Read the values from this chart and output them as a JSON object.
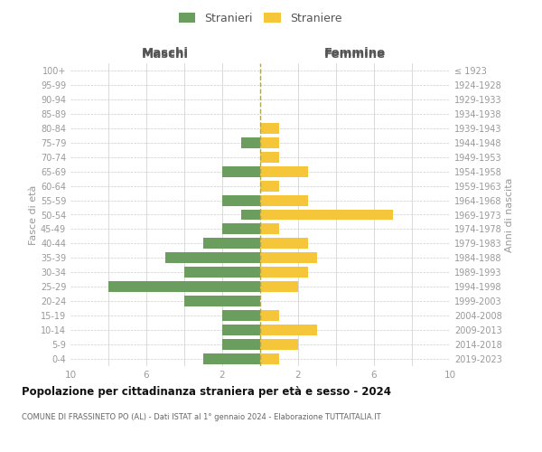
{
  "age_groups": [
    "0-4",
    "5-9",
    "10-14",
    "15-19",
    "20-24",
    "25-29",
    "30-34",
    "35-39",
    "40-44",
    "45-49",
    "50-54",
    "55-59",
    "60-64",
    "65-69",
    "70-74",
    "75-79",
    "80-84",
    "85-89",
    "90-94",
    "95-99",
    "100+"
  ],
  "birth_years": [
    "2019-2023",
    "2014-2018",
    "2009-2013",
    "2004-2008",
    "1999-2003",
    "1994-1998",
    "1989-1993",
    "1984-1988",
    "1979-1983",
    "1974-1978",
    "1969-1973",
    "1964-1968",
    "1959-1963",
    "1954-1958",
    "1949-1953",
    "1944-1948",
    "1939-1943",
    "1934-1938",
    "1929-1933",
    "1924-1928",
    "≤ 1923"
  ],
  "maschi": [
    3,
    2,
    2,
    2,
    4,
    8,
    4,
    5,
    3,
    2,
    1,
    2,
    0,
    2,
    0,
    1,
    0,
    0,
    0,
    0,
    0
  ],
  "femmine": [
    1,
    2,
    3,
    1,
    0,
    2,
    2.5,
    3,
    2.5,
    1,
    7,
    2.5,
    1,
    2.5,
    1,
    1,
    1,
    0,
    0,
    0,
    0
  ],
  "color_maschi": "#6b9e5e",
  "color_femmine": "#f5c53a",
  "title": "Popolazione per cittadinanza straniera per età e sesso - 2024",
  "subtitle": "COMUNE DI FRASSINETO PO (AL) - Dati ISTAT al 1° gennaio 2024 - Elaborazione TUTTAITALIA.IT",
  "header_left": "Maschi",
  "header_right": "Femmine",
  "ylabel_left": "Fasce di età",
  "ylabel_right": "Anni di nascita",
  "legend_maschi": "Stranieri",
  "legend_femmine": "Straniere",
  "xlim": 10,
  "bg_color": "#ffffff",
  "grid_color": "#cccccc",
  "tick_color": "#999999",
  "header_color": "#555555",
  "title_color": "#111111",
  "subtitle_color": "#666666"
}
